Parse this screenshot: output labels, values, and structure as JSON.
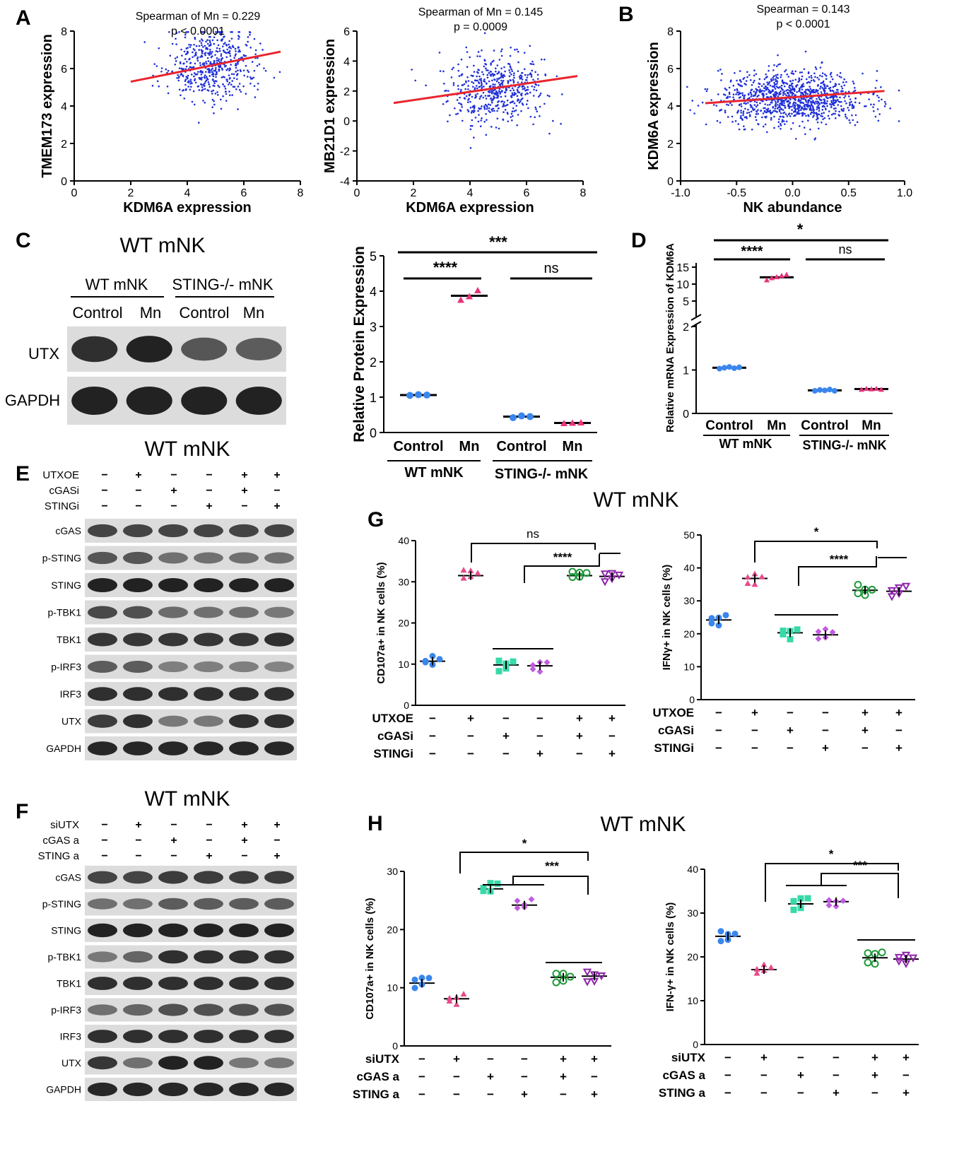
{
  "panel_letters": [
    "A",
    "B",
    "C",
    "D",
    "E",
    "F",
    "G",
    "H"
  ],
  "colors": {
    "scatter": "#1f2fd8",
    "regression": "#e8262e",
    "control": "#3a86ec",
    "mn": "#e8337a",
    "green": "#1f9a3a",
    "teal": "#38d9a9",
    "purple": "#8e24aa",
    "violet": "#c15be0",
    "pink": "#e64a8a"
  },
  "chart_data": [
    {
      "id": "A1",
      "type": "scatter",
      "title": "Spearman of Mn = 0.229",
      "subtitle": "p < 0.0001",
      "xlabel": "KDM6A expression",
      "ylabel": "TMEM173 expression",
      "xlim": [
        0,
        8
      ],
      "ylim": [
        0,
        8
      ],
      "xticks": [
        "0",
        "2",
        "4",
        "6",
        "8"
      ],
      "yticks": [
        "0",
        "2",
        "4",
        "6",
        "8"
      ],
      "n_points": 520,
      "center": [
        4.9,
        6.2
      ],
      "spread": [
        0.8,
        0.95
      ],
      "regression": {
        "x": [
          2,
          7.3
        ],
        "y": [
          5.3,
          6.9
        ]
      },
      "grid": false
    },
    {
      "id": "A2",
      "type": "scatter",
      "title": "Spearman of Mn = 0.145",
      "subtitle": "p = 0.0009",
      "xlabel": "KDM6A expression",
      "ylabel": "MB21D1 expression",
      "xlim": [
        0,
        8
      ],
      "ylim": [
        -4,
        6
      ],
      "xticks": [
        "0",
        "2",
        "4",
        "6",
        "8"
      ],
      "yticks": [
        "-4",
        "-2",
        "0",
        "2",
        "4",
        "6"
      ],
      "n_points": 520,
      "center": [
        4.9,
        2.1
      ],
      "spread": [
        0.85,
        1.15
      ],
      "regression": {
        "x": [
          1.3,
          7.8
        ],
        "y": [
          1.2,
          3.0
        ]
      },
      "grid": false
    },
    {
      "id": "B",
      "type": "scatter",
      "title": "Spearman = 0.143",
      "subtitle": "p < 0.0001",
      "xlabel": "NK abundance",
      "ylabel": "KDM6A expression",
      "xlim": [
        -1.0,
        1.0
      ],
      "ylim": [
        0,
        8
      ],
      "xticks": [
        "-1.0",
        "-0.5",
        "0.0",
        "0.5",
        "1.0"
      ],
      "yticks": [
        "0",
        "2",
        "4",
        "6",
        "8"
      ],
      "n_points": 1050,
      "center": [
        0.0,
        4.4
      ],
      "spread": [
        0.32,
        0.7
      ],
      "regression": {
        "x": [
          -0.78,
          0.82
        ],
        "y": [
          4.15,
          4.8
        ]
      },
      "grid": false
    },
    {
      "id": "C_bar",
      "type": "scatter",
      "ylabel": "Relative Protein Expression",
      "ylim": [
        0,
        5
      ],
      "yticks": [
        "0",
        "1",
        "2",
        "3",
        "4",
        "5"
      ],
      "categories": [
        "Control",
        "Mn",
        "Control",
        "Mn"
      ],
      "groups": [
        "WT mNK",
        "STING-/- mNK"
      ],
      "means": [
        1.06,
        3.87,
        0.45,
        0.27
      ],
      "points": [
        [
          1.05,
          1.07,
          1.06
        ],
        [
          3.75,
          3.85,
          4.02
        ],
        [
          0.42,
          0.47,
          0.45
        ],
        [
          0.26,
          0.27,
          0.28
        ]
      ],
      "sig": [
        {
          "from": 0,
          "to": 1,
          "label": "****"
        },
        {
          "from": 2,
          "to": 3,
          "label": "ns"
        },
        {
          "from": 0,
          "to": 3,
          "label": "***"
        }
      ]
    },
    {
      "id": "D",
      "type": "scatter",
      "ylabel": "Relative mRNA Expression of KDM6A",
      "yticks_low": [
        "0",
        "1",
        "2"
      ],
      "yticks_high": [
        "5",
        "10",
        "15"
      ],
      "categories": [
        "Control",
        "Mn",
        "Control",
        "Mn"
      ],
      "groups": [
        "WT mNK",
        "STING-/- mNK"
      ],
      "means": [
        1.05,
        12.0,
        0.53,
        0.56
      ],
      "points": [
        [
          1.03,
          1.05,
          1.07,
          1.04,
          1.06
        ],
        [
          11.2,
          11.8,
          12.1,
          12.5,
          12.8
        ],
        [
          0.52,
          0.54,
          0.53,
          0.55,
          0.52
        ],
        [
          0.55,
          0.57,
          0.56,
          0.57,
          0.55
        ]
      ],
      "sig": [
        {
          "from": 0,
          "to": 1,
          "label": "****"
        },
        {
          "from": 2,
          "to": 3,
          "label": "ns"
        },
        {
          "from": 0,
          "to": 3,
          "label": "*"
        }
      ]
    },
    {
      "id": "G1",
      "type": "scatter",
      "ylabel": "CD107a+ in NK cells (%)",
      "ylim": [
        0,
        40
      ],
      "yticks": [
        "0",
        "10",
        "20",
        "30",
        "40"
      ],
      "means": [
        10.7,
        31.5,
        9.8,
        9.6,
        31.5,
        31.3
      ],
      "sig": [
        {
          "label": "ns"
        },
        {
          "label": "****"
        }
      ]
    },
    {
      "id": "G2",
      "type": "scatter",
      "ylabel": "IFNγ+ in NK cells (%)",
      "ylim": [
        0,
        50
      ],
      "yticks": [
        "0",
        "10",
        "20",
        "30",
        "40",
        "50"
      ],
      "means": [
        24.2,
        36.8,
        20.3,
        19.7,
        33.2,
        32.9
      ],
      "sig": [
        {
          "label": "*"
        },
        {
          "label": "****"
        }
      ]
    },
    {
      "id": "H1",
      "type": "scatter",
      "ylabel": "CD107a+ in NK cells (%)",
      "ylim": [
        0,
        30
      ],
      "yticks": [
        "0",
        "10",
        "20",
        "30"
      ],
      "means": [
        10.8,
        8.1,
        27.0,
        24.2,
        11.8,
        12.0
      ],
      "sig": [
        {
          "label": "*"
        },
        {
          "label": "***"
        }
      ]
    },
    {
      "id": "H2",
      "type": "scatter",
      "ylabel": "IFN-γ+ in NK cells (%)",
      "ylim": [
        0,
        40
      ],
      "yticks": [
        "0",
        "10",
        "20",
        "30",
        "40"
      ],
      "means": [
        24.7,
        17.1,
        32.1,
        32.6,
        19.8,
        19.5
      ],
      "sig": [
        {
          "label": "*"
        },
        {
          "label": "***"
        }
      ]
    }
  ],
  "panel_C": {
    "title": "WT mNK",
    "group_labels": [
      "WT mNK",
      "STING-/- mNK"
    ],
    "lane_labels": [
      "Control",
      "Mn",
      "Control",
      "Mn"
    ],
    "rows": [
      "UTX",
      "GAPDH"
    ]
  },
  "panel_E": {
    "title": "WT mNK",
    "treatments": [
      {
        "label": "UTXOE",
        "signs": [
          "−",
          "+",
          "−",
          "−",
          "+",
          "+"
        ]
      },
      {
        "label": "cGASi",
        "signs": [
          "−",
          "−",
          "+",
          "−",
          "+",
          "−"
        ]
      },
      {
        "label": "STINGi",
        "signs": [
          "−",
          "−",
          "−",
          "+",
          "−",
          "+"
        ]
      }
    ],
    "rows": [
      "cGAS",
      "p-STING",
      "STING",
      "p-TBK1",
      "TBK1",
      "p-IRF3",
      "IRF3",
      "UTX",
      "GAPDH"
    ]
  },
  "panel_F": {
    "title": "WT mNK",
    "treatments": [
      {
        "label": "siUTX",
        "signs": [
          "−",
          "+",
          "−",
          "−",
          "+",
          "+"
        ]
      },
      {
        "label": "cGAS a",
        "signs": [
          "−",
          "−",
          "+",
          "−",
          "+",
          "−"
        ]
      },
      {
        "label": "STING a",
        "signs": [
          "−",
          "−",
          "−",
          "+",
          "−",
          "+"
        ]
      }
    ],
    "rows": [
      "cGAS",
      "p-STING",
      "STING",
      "p-TBK1",
      "TBK1",
      "p-IRF3",
      "IRF3",
      "UTX",
      "GAPDH"
    ]
  },
  "panel_G": {
    "title": "WT mNK",
    "treatments": [
      {
        "label": "UTXOE",
        "signs": [
          "−",
          "+",
          "−",
          "−",
          "+",
          "+"
        ]
      },
      {
        "label": "cGASi",
        "signs": [
          "−",
          "−",
          "+",
          "−",
          "+",
          "−"
        ]
      },
      {
        "label": "STINGi",
        "signs": [
          "−",
          "−",
          "−",
          "+",
          "−",
          "+"
        ]
      }
    ]
  },
  "panel_H": {
    "title": "WT mNK",
    "treatments": [
      {
        "label": "siUTX",
        "signs": [
          "−",
          "+",
          "−",
          "−",
          "+",
          "+"
        ]
      },
      {
        "label": "cGAS a",
        "signs": [
          "−",
          "−",
          "+",
          "−",
          "+",
          "−"
        ]
      },
      {
        "label": "STING a",
        "signs": [
          "−",
          "−",
          "−",
          "+",
          "−",
          "+"
        ]
      }
    ]
  }
}
